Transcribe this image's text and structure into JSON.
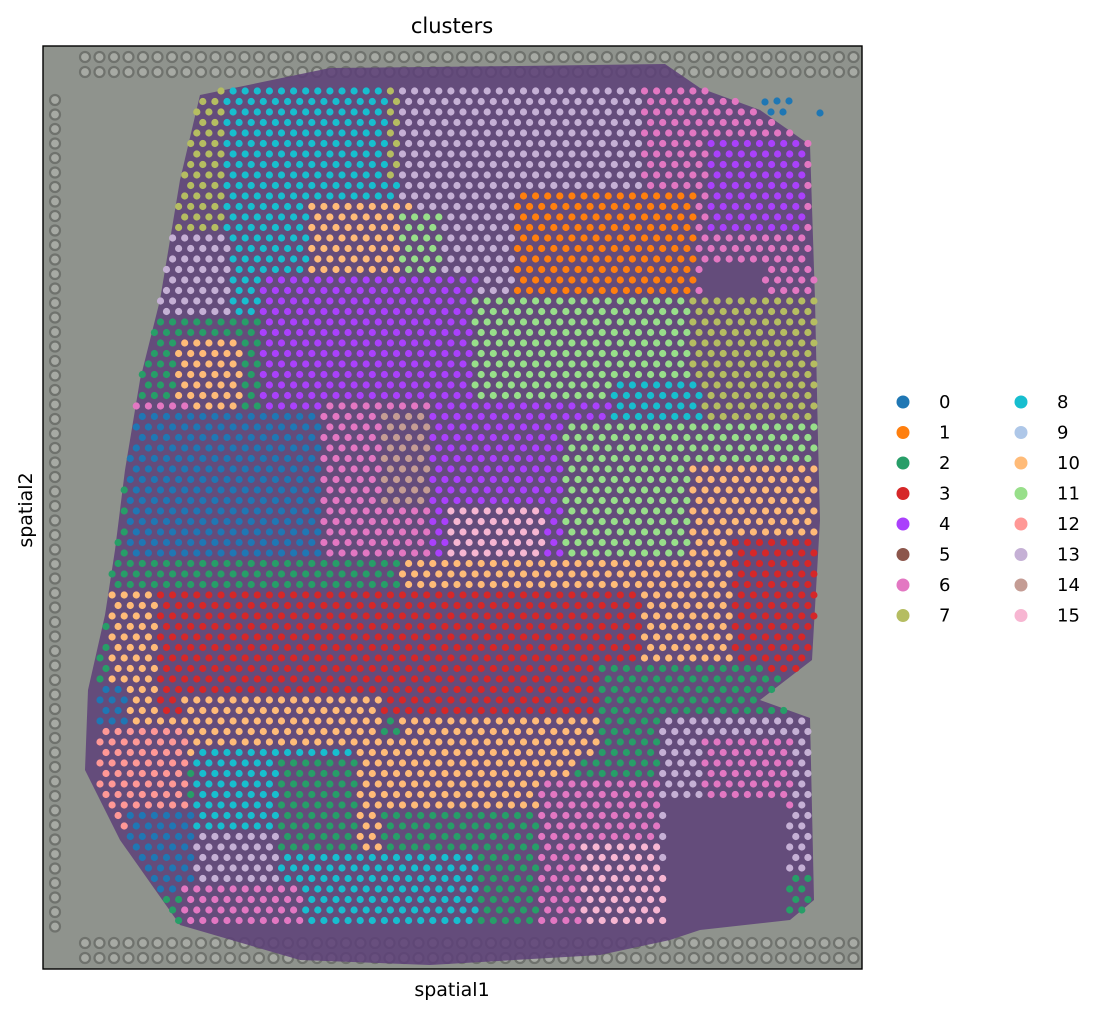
{
  "chart_data": {
    "type": "scatter",
    "title": "clusters",
    "xlabel": "spatial1",
    "ylabel": "spatial2",
    "legend_placement": "right",
    "legend_columns": 2,
    "grid": false,
    "show_ticks": false,
    "background": "tissue-image",
    "series": [
      {
        "name": "0",
        "color": "#1f77b4"
      },
      {
        "name": "1",
        "color": "#ff7f0e"
      },
      {
        "name": "2",
        "color": "#279e68"
      },
      {
        "name": "3",
        "color": "#d62728"
      },
      {
        "name": "4",
        "color": "#aa40fc"
      },
      {
        "name": "5",
        "color": "#8c564b"
      },
      {
        "name": "6",
        "color": "#e377c2"
      },
      {
        "name": "7",
        "color": "#b5bd61"
      },
      {
        "name": "8",
        "color": "#17becf"
      },
      {
        "name": "9",
        "color": "#aec7e8"
      },
      {
        "name": "10",
        "color": "#ffbb78"
      },
      {
        "name": "11",
        "color": "#98df8a"
      },
      {
        "name": "12",
        "color": "#ff9896"
      },
      {
        "name": "13",
        "color": "#c5b0d5"
      },
      {
        "name": "14",
        "color": "#c49c94"
      },
      {
        "name": "15",
        "color": "#f7b6d2"
      }
    ]
  }
}
